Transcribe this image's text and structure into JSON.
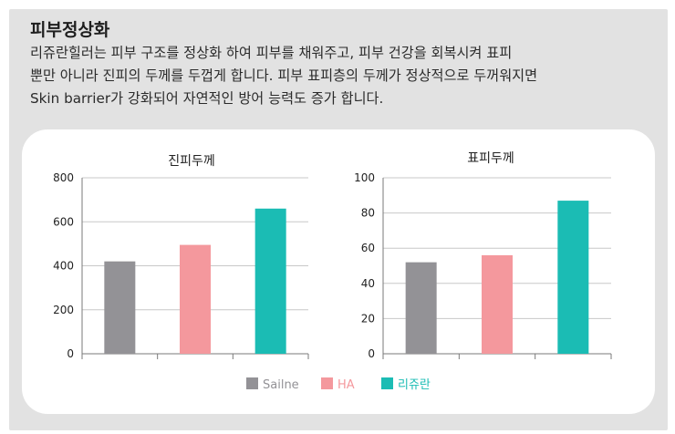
{
  "header": {
    "title": "피부정상화",
    "description_lines": [
      "리쥬란힐러는 피부 구조를 정상화 하여 피부를 채워주고, 피부 건강을 회복시켜 표피",
      "뿐만 아니라 진피의 두께를 두껍게 합니다. 피부 표피층의 두께가 정상적으로 두꺼워지면",
      "Skin barrier가 강화되어 자연적인 방어 능력도 증가 합니다."
    ]
  },
  "chart_data": [
    {
      "type": "bar",
      "title": "진피두께",
      "categories": [
        "Sailne",
        "HA",
        "리쥬란"
      ],
      "values": [
        420,
        495,
        660
      ],
      "ylim": [
        0,
        800
      ],
      "yticks": [
        0,
        200,
        400,
        600,
        800
      ],
      "colors": [
        "#939296",
        "#f4989d",
        "#1bbcb4"
      ],
      "grid": true
    },
    {
      "type": "bar",
      "title": "표피두께",
      "categories": [
        "Sailne",
        "HA",
        "리쥬란"
      ],
      "values": [
        52,
        56,
        87
      ],
      "ylim": [
        0,
        100
      ],
      "yticks": [
        0,
        20,
        40,
        60,
        80,
        100
      ],
      "colors": [
        "#939296",
        "#f4989d",
        "#1bbcb4"
      ],
      "grid": true
    }
  ],
  "legend": {
    "items": [
      {
        "label": "Sailne",
        "color": "#939296"
      },
      {
        "label": "HA",
        "color": "#f4989d"
      },
      {
        "label": "리쥬란",
        "color": "#1bbcb4"
      }
    ],
    "placement": "bottom-center"
  }
}
